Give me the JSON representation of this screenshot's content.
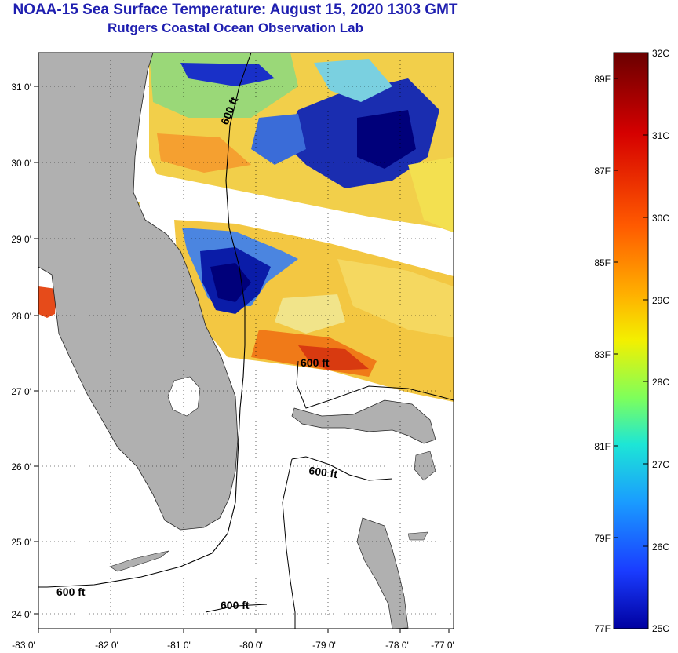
{
  "title": {
    "line1": "NOAA-15 Sea Surface Temperature:  August 15, 2020 1303 GMT",
    "line2": "Rutgers Coastal Ocean Observation Lab"
  },
  "map": {
    "lat_labels": [
      "31 0'",
      "30 0'",
      "29 0'",
      "28 0'",
      "27 0'",
      "26 0'",
      "25 0'",
      "24 0'"
    ],
    "lon_labels": [
      "-83 0'",
      "-82 0'",
      "-81 0'",
      "-80 0'",
      "-79 0'",
      "-78 0'",
      "-77 0'"
    ],
    "contour_label": "600 ft",
    "land_color": "#b0b0b0"
  },
  "colorbar": {
    "celsius_labels": [
      "32C",
      "31C",
      "30C",
      "29C",
      "28C",
      "27C",
      "26C",
      "25C"
    ],
    "fahrenheit_labels": [
      "89F",
      "87F",
      "85F",
      "83F",
      "81F",
      "79F",
      "77F"
    ],
    "colors": [
      "#6a0000",
      "#d50000",
      "#ff5a00",
      "#ffb000",
      "#f3f000",
      "#7dff5c",
      "#1de6d6",
      "#1a9cff",
      "#1a3cff",
      "#0000a0"
    ]
  }
}
